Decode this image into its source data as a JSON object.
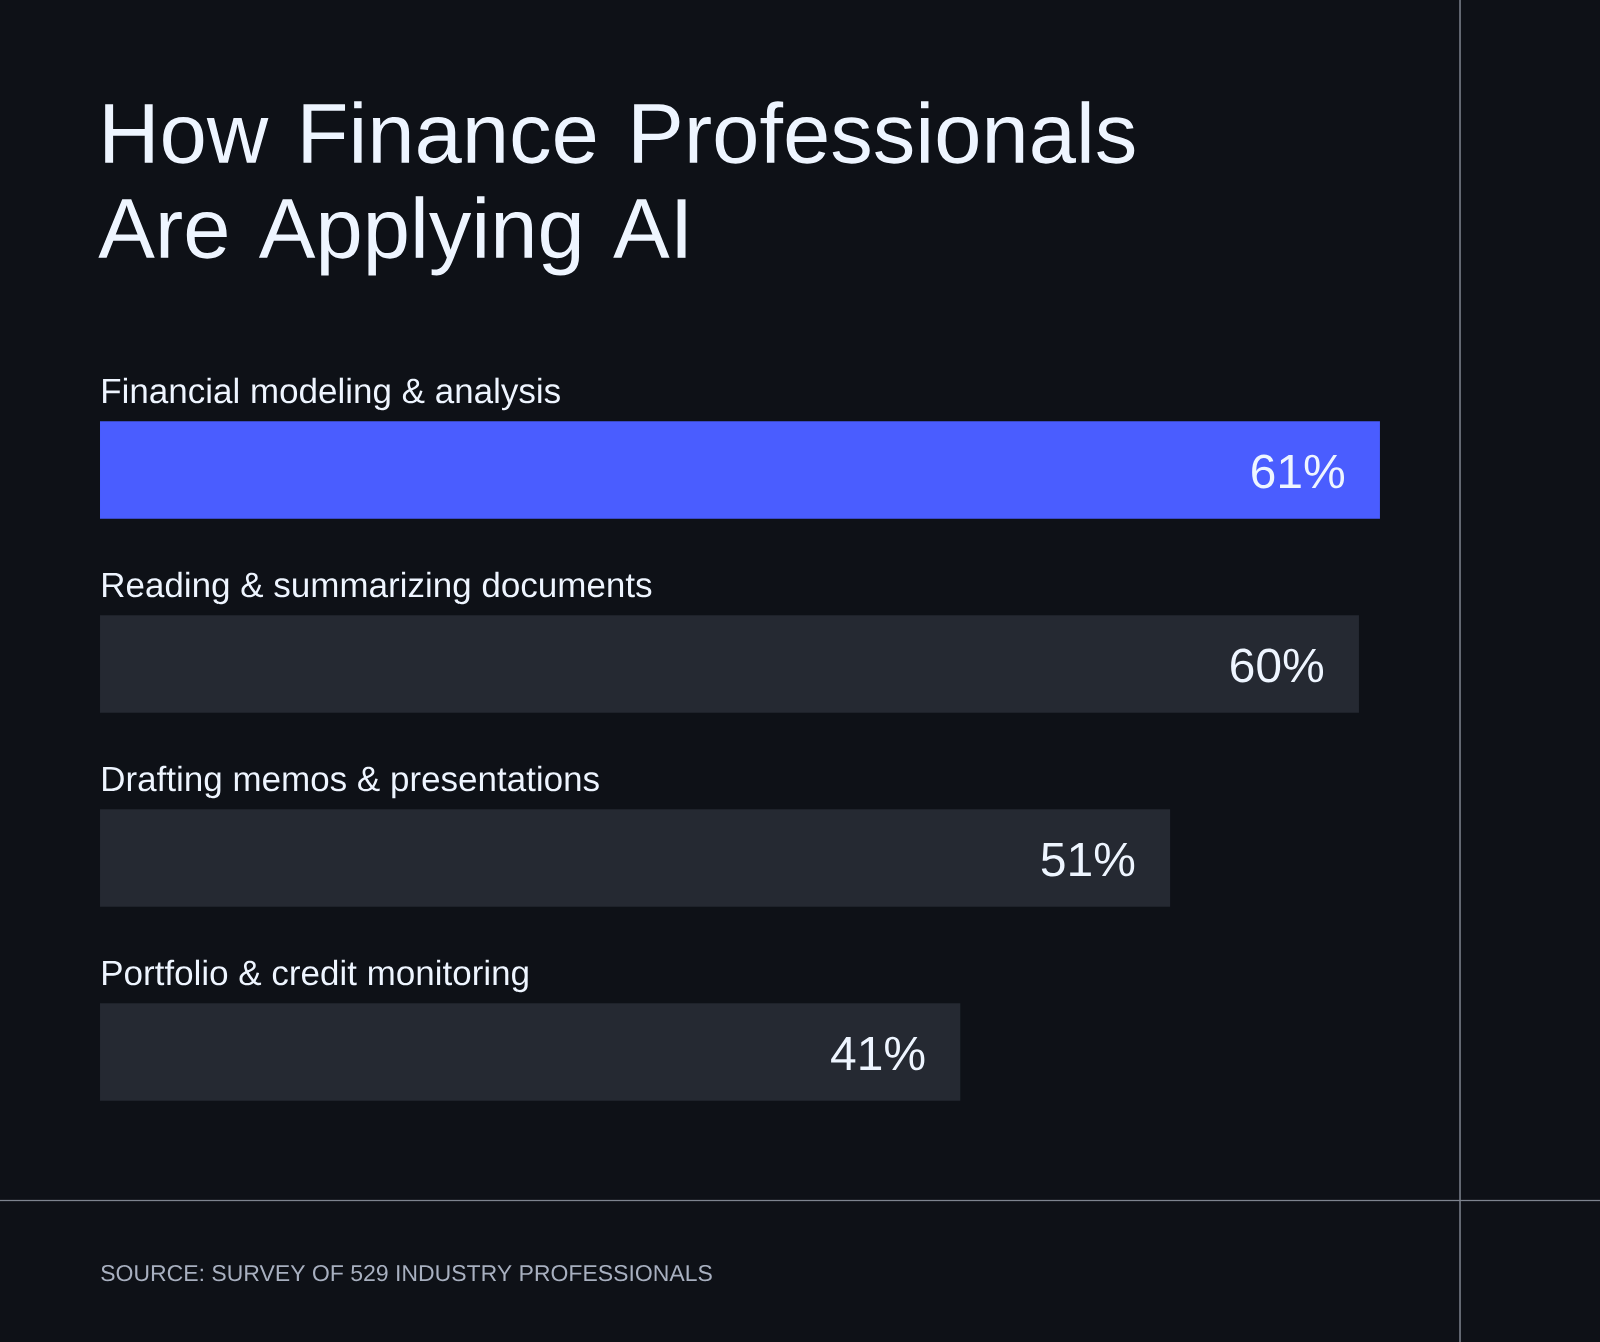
{
  "chart_data": {
    "type": "bar",
    "orientation": "horizontal",
    "title": "How Finance Professionals Are Applying AI",
    "categories": [
      "Financial modeling & analysis",
      "Reading & summarizing documents",
      "Drafting memos & presentations",
      "Portfolio & credit monitoring"
    ],
    "values": [
      61,
      60,
      51,
      41
    ],
    "value_labels": [
      "61%",
      "60%",
      "51%",
      "41%"
    ],
    "colors": [
      "#4a5dff",
      "#252932",
      "#252932",
      "#252932"
    ],
    "annotations": [
      "SOURCE: SURVEY OF 529 INDUSTRY PROFESSIONALS"
    ]
  }
}
